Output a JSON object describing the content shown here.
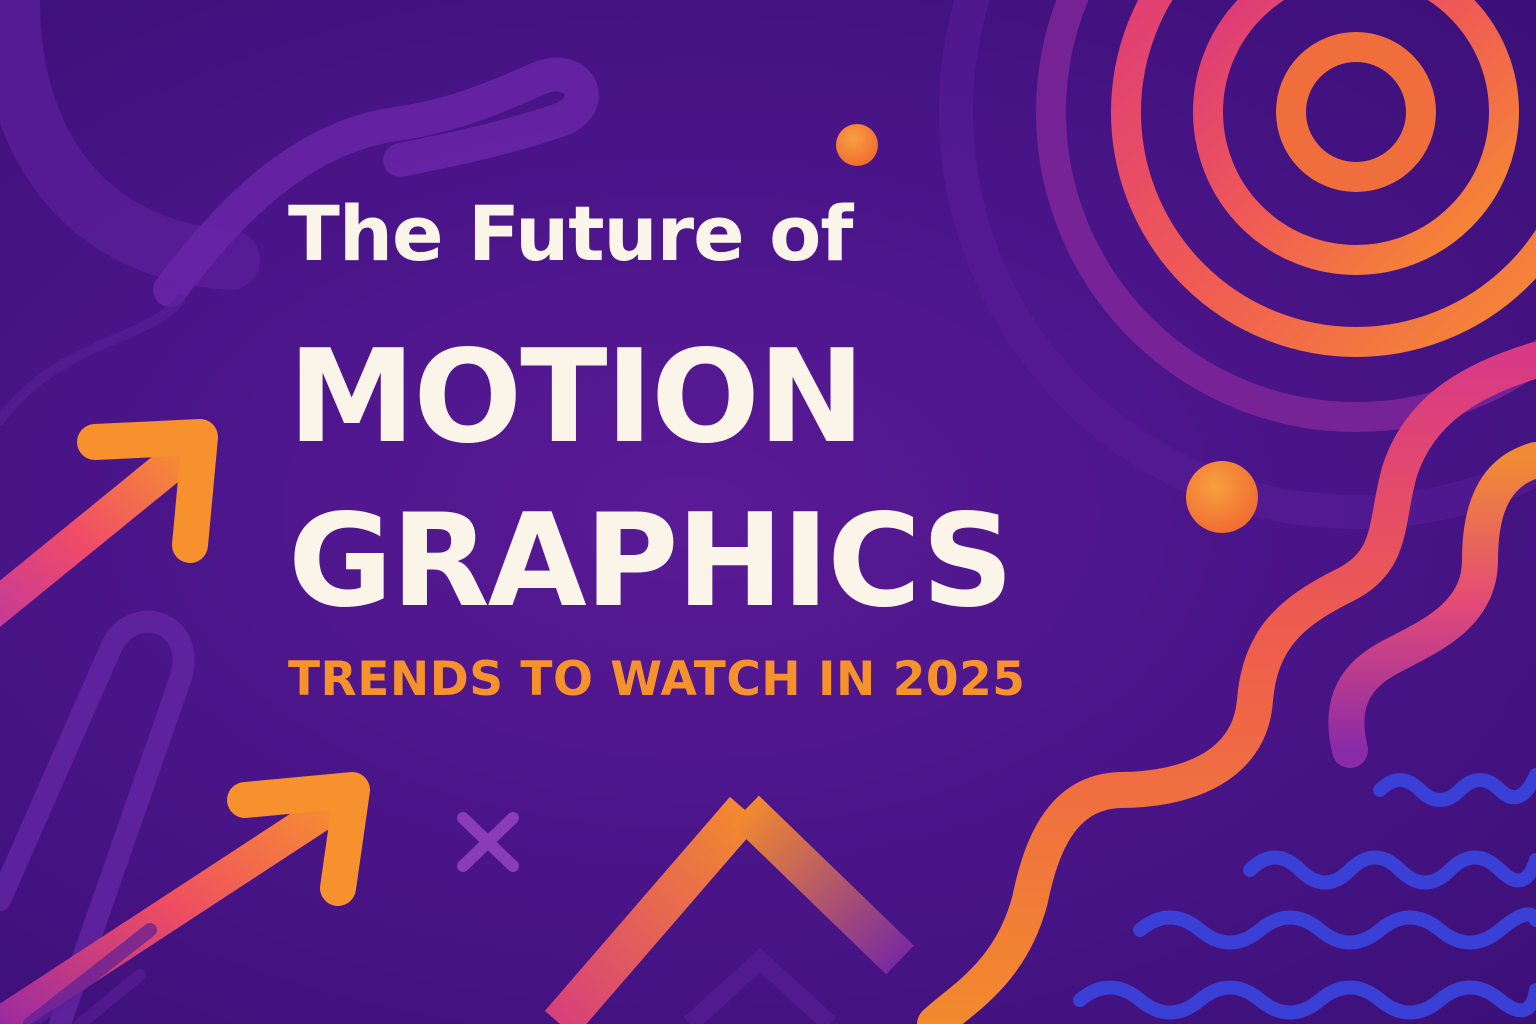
{
  "headline": {
    "line1": "The Future of",
    "line2": "MOTION",
    "line3": "GRAPHICS",
    "subtitle": "TRENDS TO WATCH IN 2025"
  },
  "colors": {
    "background": "#4b158a",
    "text": "#fbf5e9",
    "accent_orange": "#f5922b",
    "accent_pink": "#e0358a",
    "accent_blue": "#3a3fd6",
    "soft_purple": "#6a25a8"
  },
  "decorations": [
    "concentric-circles",
    "arrow-up-right",
    "arrow-up-right",
    "wavy-line",
    "wavy-line",
    "zigzag-lines",
    "chevron-peak",
    "x-mark",
    "dot",
    "dot",
    "swoosh",
    "pill-outline",
    "arc"
  ]
}
